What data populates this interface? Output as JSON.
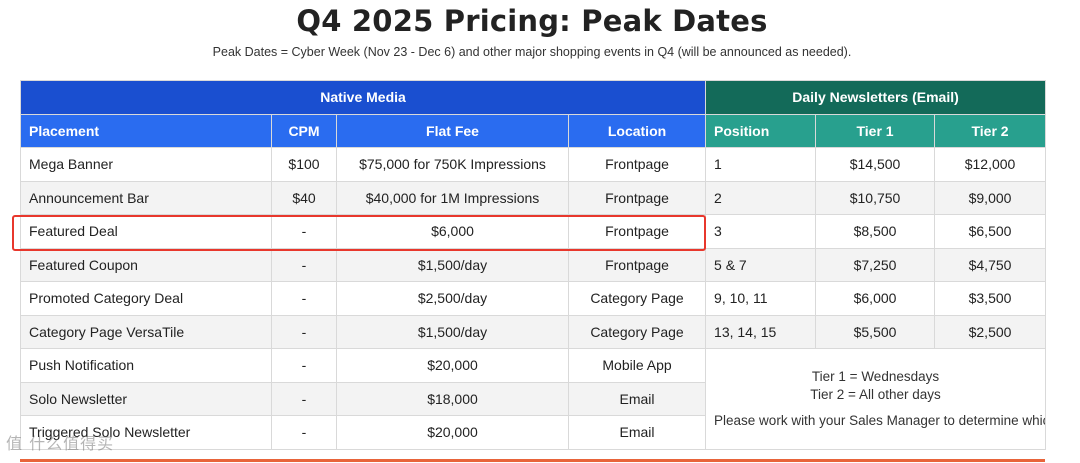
{
  "title": "Q4 2025 Pricing: Peak Dates",
  "subtitle": "Peak Dates = Cyber Week (Nov 23 - Dec 6) and other major shopping events in Q4 (will be announced as needed).",
  "groups": {
    "native": "Native Media",
    "newsletters": "Daily Newsletters (Email)"
  },
  "headers": {
    "placement": "Placement",
    "cpm": "CPM",
    "flat_fee": "Flat Fee",
    "location": "Location",
    "position": "Position",
    "tier1": "Tier 1",
    "tier2": "Tier 2"
  },
  "rows": [
    {
      "placement": "Mega Banner",
      "cpm": "$100",
      "flat_fee": "$75,000 for 750K Impressions",
      "location": "Frontpage",
      "position": "1",
      "tier1": "$14,500",
      "tier2": "$12,000"
    },
    {
      "placement": "Announcement Bar",
      "cpm": "$40",
      "flat_fee": "$40,000 for 1M Impressions",
      "location": "Frontpage",
      "position": "2",
      "tier1": "$10,750",
      "tier2": "$9,000"
    },
    {
      "placement": "Featured Deal",
      "cpm": "-",
      "flat_fee": "$6,000",
      "location": "Frontpage",
      "position": "3",
      "tier1": "$8,500",
      "tier2": "$6,500"
    },
    {
      "placement": "Featured Coupon",
      "cpm": "-",
      "flat_fee": "$1,500/day",
      "location": "Frontpage",
      "position": "5 & 7",
      "tier1": "$7,250",
      "tier2": "$4,750"
    },
    {
      "placement": "Promoted Category Deal",
      "cpm": "-",
      "flat_fee": "$2,500/day",
      "location": "Category Page",
      "position": "9, 10, 11",
      "tier1": "$6,000",
      "tier2": "$3,500"
    },
    {
      "placement": "Category Page VersaTile",
      "cpm": "-",
      "flat_fee": "$1,500/day",
      "location": "Category Page",
      "position": "13, 14, 15",
      "tier1": "$5,500",
      "tier2": "$2,500"
    },
    {
      "placement": "Push Notification",
      "cpm": "-",
      "flat_fee": "$20,000",
      "location": "Mobile App"
    },
    {
      "placement": "Solo Newsletter",
      "cpm": "-",
      "flat_fee": "$18,000",
      "location": "Email"
    },
    {
      "placement": "Triggered Solo Newsletter",
      "cpm": "-",
      "flat_fee": "$20,000",
      "location": "Email"
    }
  ],
  "notes": {
    "tier1": "Tier 1 = Wednesdays",
    "tier2": "Tier 2 = All other days",
    "advice": "Please work with your Sales Manager to determine which Tier best fits your strategy."
  },
  "watermark": "值 什么值得买",
  "colors": {
    "native_group": "#1a4fd0",
    "native_header": "#2a6cf0",
    "news_group": "#136a59",
    "news_header": "#28a08e",
    "highlight": "#e8372c",
    "bottom_line": "#e8643a"
  }
}
